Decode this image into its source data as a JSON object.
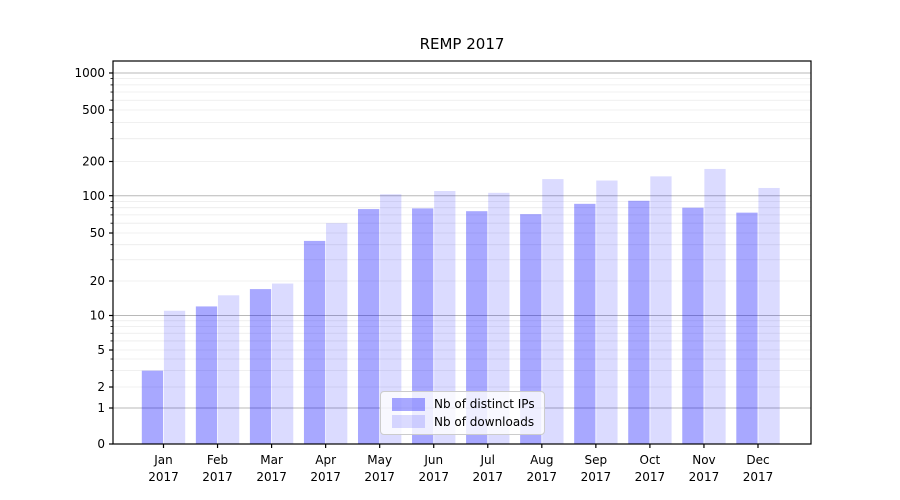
{
  "figure": {
    "title": "REMP 2017"
  },
  "chart_data": {
    "type": "bar",
    "title": "REMP 2017",
    "categories": [
      "Jan",
      "Feb",
      "Mar",
      "Apr",
      "May",
      "Jun",
      "Jul",
      "Aug",
      "Sep",
      "Oct",
      "Nov",
      "Dec"
    ],
    "category_year": "2017",
    "series": [
      {
        "name": "Nb of distinct IPs",
        "color": "#0000FF57",
        "values": [
          3,
          12,
          17,
          43,
          78,
          79,
          75,
          71,
          86,
          91,
          80,
          73
        ]
      },
      {
        "name": "Nb of downloads",
        "color": "#0000FF24",
        "values": [
          11,
          15,
          19,
          60,
          103,
          110,
          106,
          140,
          136,
          148,
          172,
          117
        ]
      }
    ],
    "xlabel": "",
    "ylabel": "",
    "yscale": "symlog",
    "yticks": [
      0,
      1,
      2,
      5,
      10,
      20,
      50,
      100,
      200,
      500,
      1000
    ],
    "ylim": [
      0,
      1200
    ],
    "grid": true,
    "legend_position": "lower center",
    "grid_major_color": "#b8b8b8",
    "grid_minor_color": "#ebebeb"
  }
}
